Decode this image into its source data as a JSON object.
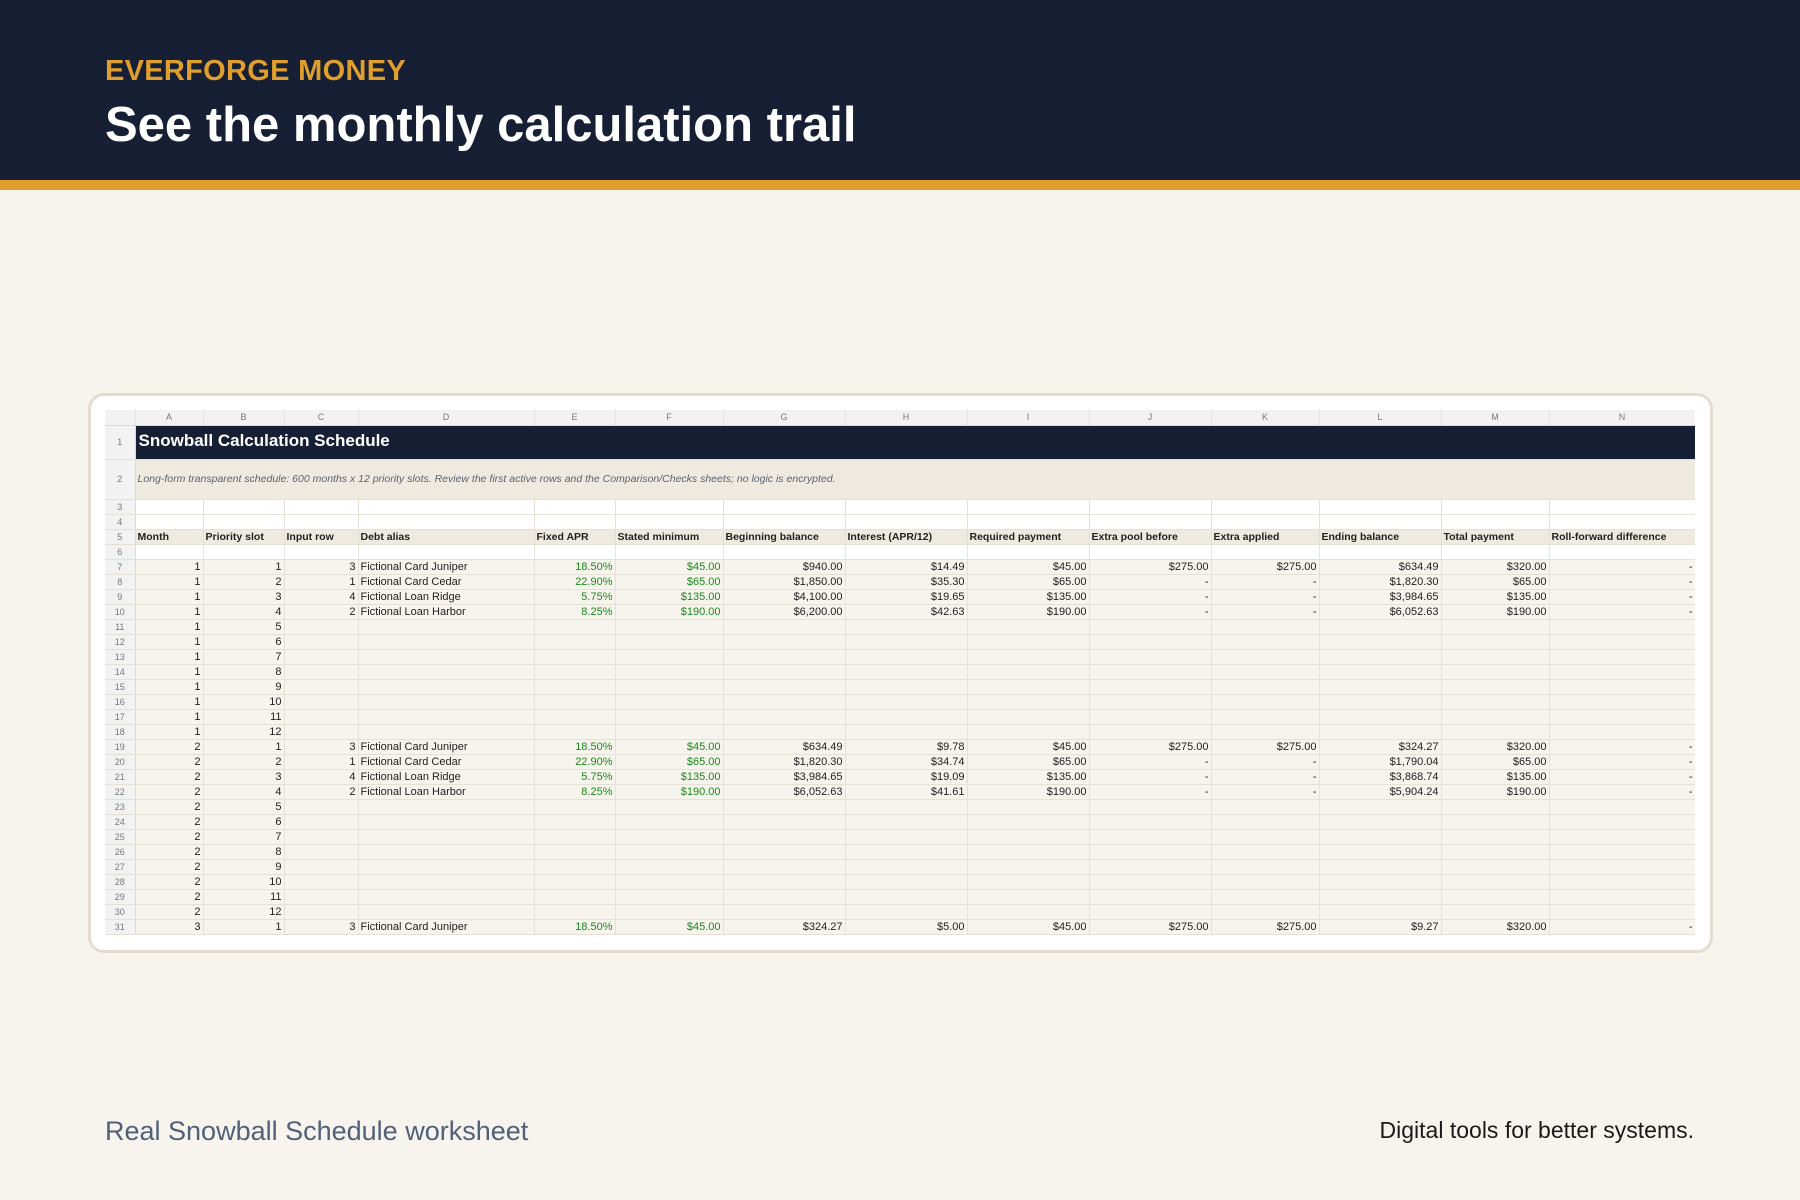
{
  "header": {
    "brand": "EVERFORGE MONEY",
    "headline": "See the monthly calculation trail"
  },
  "sheet": {
    "columns": [
      "A",
      "B",
      "C",
      "D",
      "E",
      "F",
      "G",
      "H",
      "I",
      "J",
      "K",
      "L",
      "M",
      "N"
    ],
    "title": "Snowball Calculation Schedule",
    "note": "Long-form transparent schedule: 600 months x 12 priority slots. Review the first active rows and the Comparison/Checks sheets; no logic is encrypted.",
    "headers": [
      "Month",
      "Priority slot",
      "Input row",
      "Debt alias",
      "Fixed APR",
      "Stated minimum",
      "Beginning balance",
      "Interest (APR/12)",
      "Required payment",
      "Extra pool before",
      "Extra applied",
      "Ending balance",
      "Total payment",
      "Roll-forward difference"
    ],
    "rows": [
      {
        "n": "7",
        "v": [
          "1",
          "1",
          "3",
          "Fictional Card Juniper",
          "18.50%",
          "$45.00",
          "$940.00",
          "$14.49",
          "$45.00",
          "$275.00",
          "$275.00",
          "$634.49",
          "$320.00",
          "-"
        ]
      },
      {
        "n": "8",
        "v": [
          "1",
          "2",
          "1",
          "Fictional Card Cedar",
          "22.90%",
          "$65.00",
          "$1,850.00",
          "$35.30",
          "$65.00",
          "-",
          "-",
          "$1,820.30",
          "$65.00",
          "-"
        ]
      },
      {
        "n": "9",
        "v": [
          "1",
          "3",
          "4",
          "Fictional Loan Ridge",
          "5.75%",
          "$135.00",
          "$4,100.00",
          "$19.65",
          "$135.00",
          "-",
          "-",
          "$3,984.65",
          "$135.00",
          "-"
        ]
      },
      {
        "n": "10",
        "v": [
          "1",
          "4",
          "2",
          "Fictional Loan Harbor",
          "8.25%",
          "$190.00",
          "$6,200.00",
          "$42.63",
          "$190.00",
          "-",
          "-",
          "$6,052.63",
          "$190.00",
          "-"
        ]
      },
      {
        "n": "11",
        "v": [
          "1",
          "5",
          "",
          "",
          "",
          "",
          "",
          "",
          "",
          "",
          "",
          "",
          "",
          ""
        ]
      },
      {
        "n": "12",
        "v": [
          "1",
          "6",
          "",
          "",
          "",
          "",
          "",
          "",
          "",
          "",
          "",
          "",
          "",
          ""
        ]
      },
      {
        "n": "13",
        "v": [
          "1",
          "7",
          "",
          "",
          "",
          "",
          "",
          "",
          "",
          "",
          "",
          "",
          "",
          ""
        ]
      },
      {
        "n": "14",
        "v": [
          "1",
          "8",
          "",
          "",
          "",
          "",
          "",
          "",
          "",
          "",
          "",
          "",
          "",
          ""
        ]
      },
      {
        "n": "15",
        "v": [
          "1",
          "9",
          "",
          "",
          "",
          "",
          "",
          "",
          "",
          "",
          "",
          "",
          "",
          ""
        ]
      },
      {
        "n": "16",
        "v": [
          "1",
          "10",
          "",
          "",
          "",
          "",
          "",
          "",
          "",
          "",
          "",
          "",
          "",
          ""
        ]
      },
      {
        "n": "17",
        "v": [
          "1",
          "11",
          "",
          "",
          "",
          "",
          "",
          "",
          "",
          "",
          "",
          "",
          "",
          ""
        ]
      },
      {
        "n": "18",
        "v": [
          "1",
          "12",
          "",
          "",
          "",
          "",
          "",
          "",
          "",
          "",
          "",
          "",
          "",
          ""
        ]
      },
      {
        "n": "19",
        "v": [
          "2",
          "1",
          "3",
          "Fictional Card Juniper",
          "18.50%",
          "$45.00",
          "$634.49",
          "$9.78",
          "$45.00",
          "$275.00",
          "$275.00",
          "$324.27",
          "$320.00",
          "-"
        ]
      },
      {
        "n": "20",
        "v": [
          "2",
          "2",
          "1",
          "Fictional Card Cedar",
          "22.90%",
          "$65.00",
          "$1,820.30",
          "$34.74",
          "$65.00",
          "-",
          "-",
          "$1,790.04",
          "$65.00",
          "-"
        ]
      },
      {
        "n": "21",
        "v": [
          "2",
          "3",
          "4",
          "Fictional Loan Ridge",
          "5.75%",
          "$135.00",
          "$3,984.65",
          "$19.09",
          "$135.00",
          "-",
          "-",
          "$3,868.74",
          "$135.00",
          "-"
        ]
      },
      {
        "n": "22",
        "v": [
          "2",
          "4",
          "2",
          "Fictional Loan Harbor",
          "8.25%",
          "$190.00",
          "$6,052.63",
          "$41.61",
          "$190.00",
          "-",
          "-",
          "$5,904.24",
          "$190.00",
          "-"
        ]
      },
      {
        "n": "23",
        "v": [
          "2",
          "5",
          "",
          "",
          "",
          "",
          "",
          "",
          "",
          "",
          "",
          "",
          "",
          ""
        ]
      },
      {
        "n": "24",
        "v": [
          "2",
          "6",
          "",
          "",
          "",
          "",
          "",
          "",
          "",
          "",
          "",
          "",
          "",
          ""
        ]
      },
      {
        "n": "25",
        "v": [
          "2",
          "7",
          "",
          "",
          "",
          "",
          "",
          "",
          "",
          "",
          "",
          "",
          "",
          ""
        ]
      },
      {
        "n": "26",
        "v": [
          "2",
          "8",
          "",
          "",
          "",
          "",
          "",
          "",
          "",
          "",
          "",
          "",
          "",
          ""
        ]
      },
      {
        "n": "27",
        "v": [
          "2",
          "9",
          "",
          "",
          "",
          "",
          "",
          "",
          "",
          "",
          "",
          "",
          "",
          ""
        ]
      },
      {
        "n": "28",
        "v": [
          "2",
          "10",
          "",
          "",
          "",
          "",
          "",
          "",
          "",
          "",
          "",
          "",
          "",
          ""
        ]
      },
      {
        "n": "29",
        "v": [
          "2",
          "11",
          "",
          "",
          "",
          "",
          "",
          "",
          "",
          "",
          "",
          "",
          "",
          ""
        ]
      },
      {
        "n": "30",
        "v": [
          "2",
          "12",
          "",
          "",
          "",
          "",
          "",
          "",
          "",
          "",
          "",
          "",
          "",
          ""
        ]
      },
      {
        "n": "31",
        "v": [
          "3",
          "1",
          "3",
          "Fictional Card Juniper",
          "18.50%",
          "$45.00",
          "$324.27",
          "$5.00",
          "$45.00",
          "$275.00",
          "$275.00",
          "$9.27",
          "$320.00",
          "-"
        ]
      }
    ]
  },
  "footer": {
    "caption": "Real Snowball Schedule worksheet",
    "tagline": "Digital tools for better systems."
  }
}
